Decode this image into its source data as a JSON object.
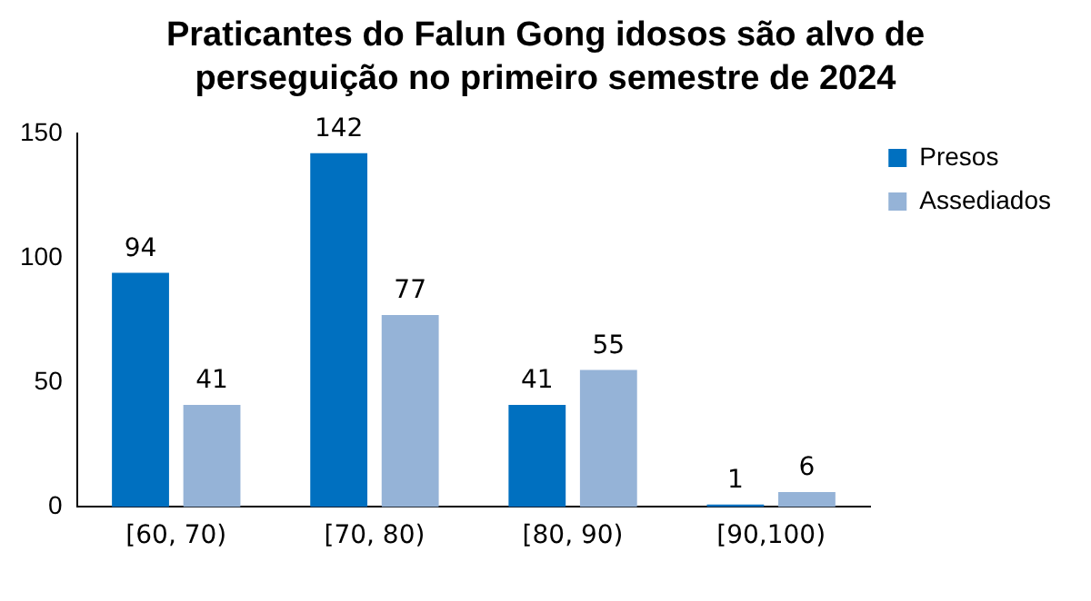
{
  "chart_data": {
    "type": "bar",
    "title": "Praticantes do Falun Gong idosos são alvo de perseguição no primeiro semestre de 2024",
    "categories": [
      "[60, 70)",
      "[70, 80)",
      "[80, 90)",
      "[90,100)"
    ],
    "series": [
      {
        "name": "Presos",
        "color": "#0070c0",
        "values": [
          94,
          142,
          41,
          1
        ]
      },
      {
        "name": "Assediados",
        "color": "#95b3d7",
        "values": [
          41,
          77,
          55,
          6
        ]
      }
    ],
    "ylim": [
      0,
      150
    ],
    "yticks": [
      0,
      50,
      100,
      150
    ],
    "grid": false,
    "legend": "top right",
    "data_labels": true
  }
}
